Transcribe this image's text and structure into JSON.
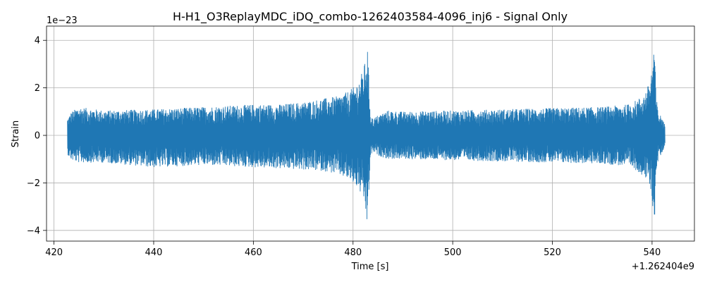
{
  "chart_data": {
    "type": "line",
    "title": "H-H1_O3ReplayMDC_iDQ_combo-1262403584-4096_inj6 - Signal Only",
    "xlabel": "Time [s]",
    "ylabel": "Strain",
    "x_offset_label": "+1.262404e9",
    "y_scale_label": "1e−23",
    "xlim": [
      418.5,
      548.5
    ],
    "ylim": [
      -4.45,
      4.6
    ],
    "x_ticks": [
      420,
      440,
      460,
      480,
      500,
      520,
      540
    ],
    "x_tick_labels": [
      "420",
      "440",
      "460",
      "480",
      "500",
      "520",
      "540"
    ],
    "y_ticks": [
      -4,
      -2,
      0,
      2,
      4
    ],
    "y_tick_labels": [
      "−4",
      "−2",
      "0",
      "2",
      "4"
    ],
    "grid": true,
    "series": [
      {
        "color": "#1f77b4",
        "x_range": [
          422.7,
          542.6
        ],
        "envelope": {
          "t": [
            422.7,
            423.5,
            425,
            430,
            440,
            450,
            460,
            465,
            470,
            474,
            477,
            479,
            480.5,
            481.5,
            482.3,
            482.9,
            483.2,
            483.5,
            484,
            485,
            487,
            490,
            500,
            510,
            520,
            530,
            535,
            537,
            538.5,
            539.5,
            540.1,
            540.4,
            540.55,
            540.8,
            541.3,
            542,
            542.6
          ],
          "upper": [
            0.7,
            1.0,
            1.2,
            1.05,
            1.1,
            1.2,
            1.3,
            1.3,
            1.4,
            1.55,
            1.65,
            1.85,
            2.1,
            2.45,
            3.0,
            3.7,
            2.3,
            0.9,
            0.7,
            0.85,
            1.05,
            1.0,
            1.05,
            1.1,
            1.15,
            1.2,
            1.3,
            1.5,
            1.75,
            2.25,
            3.0,
            4.2,
            3.4,
            1.7,
            0.9,
            0.8,
            0.4
          ],
          "lower": [
            -0.8,
            -1.05,
            -1.15,
            -1.15,
            -1.35,
            -1.25,
            -1.35,
            -1.4,
            -1.45,
            -1.5,
            -1.65,
            -1.85,
            -2.1,
            -2.45,
            -2.9,
            -3.9,
            -2.3,
            -0.9,
            -0.7,
            -0.85,
            -1.0,
            -1.0,
            -1.05,
            -1.1,
            -1.15,
            -1.2,
            -1.3,
            -1.5,
            -1.75,
            -2.2,
            -2.9,
            -3.95,
            -3.3,
            -1.6,
            -0.95,
            -0.8,
            -0.4
          ]
        }
      }
    ]
  }
}
